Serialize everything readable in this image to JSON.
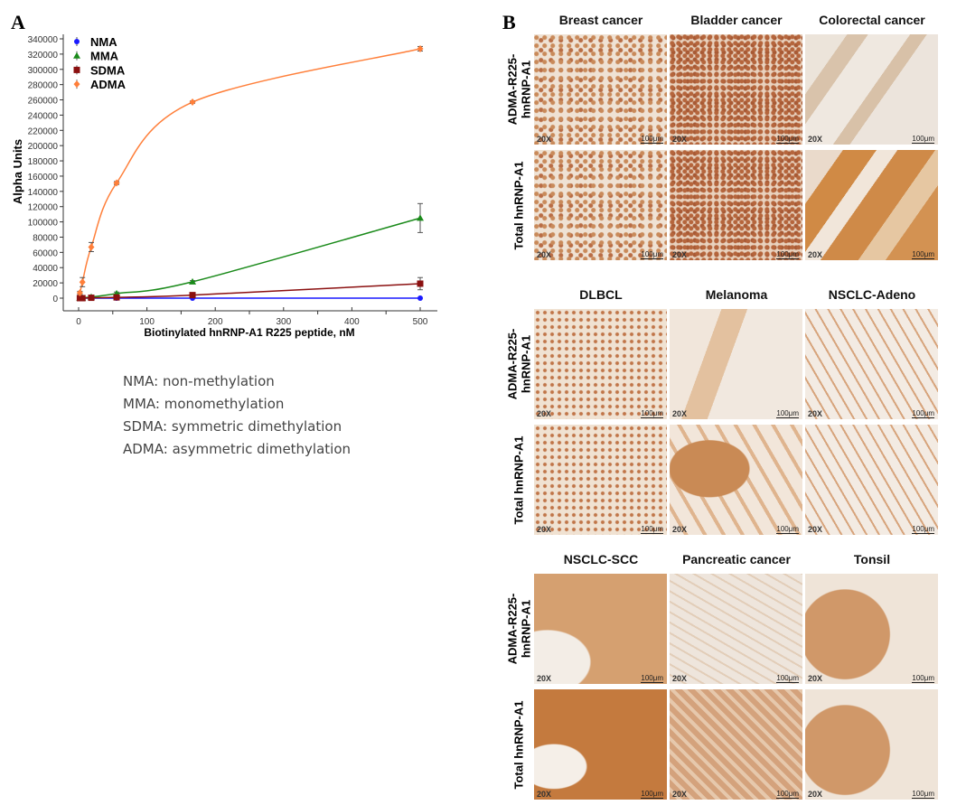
{
  "panel_a": {
    "letter": "A"
  },
  "panel_b": {
    "letter": "B"
  },
  "chart_data": {
    "type": "line",
    "title": "",
    "xlabel": "Biotinylated  hnRNP-A1  R225 peptide,  nM",
    "ylabel": "Alpha  Units",
    "xlim": [
      -10,
      515
    ],
    "ylim": [
      -15000,
      340000
    ],
    "xticks": [
      0,
      100,
      200,
      300,
      400,
      500
    ],
    "yticks": [
      0,
      20000,
      40000,
      60000,
      80000,
      100000,
      120000,
      140000,
      160000,
      180000,
      200000,
      220000,
      240000,
      260000,
      280000,
      300000,
      320000,
      340000
    ],
    "legend_position": "top-left",
    "x": [
      1.85,
      5.6,
      18.5,
      55.6,
      166.7,
      500
    ],
    "series": [
      {
        "name": "NMA",
        "color": "#1a1aff",
        "marker": "circle",
        "values": [
          0,
          0,
          0,
          0,
          0,
          0
        ],
        "errors": [
          0,
          0,
          0,
          0,
          0,
          0
        ]
      },
      {
        "name": "MMA",
        "color": "#1a8a1a",
        "marker": "triangle",
        "values": [
          0,
          500,
          1500,
          6000,
          21500,
          105000
        ],
        "errors": [
          0,
          0,
          0,
          2000,
          1500,
          19000
        ]
      },
      {
        "name": "SDMA",
        "color": "#8b1010",
        "marker": "square",
        "values": [
          0,
          0,
          500,
          1000,
          4000,
          19000
        ],
        "errors": [
          0,
          0,
          0,
          0,
          1000,
          8000
        ]
      },
      {
        "name": "ADMA",
        "color": "#ff7f3a",
        "marker": "diamond",
        "values": [
          7000,
          21000,
          67000,
          151000,
          257000,
          327000
        ],
        "errors": [
          2000,
          6000,
          6000,
          2000,
          1500,
          3000
        ]
      }
    ]
  },
  "abbreviations": [
    "NMA: non-methylation",
    "MMA: monomethylation",
    "SDMA: symmetric dimethylation",
    "ADMA: asymmetric dimethylation"
  ],
  "row_labels": {
    "adma": "ADMA-R225-\nhnRNP-A1",
    "total": "Total hnRNP-A1"
  },
  "image_labels": {
    "mag": "20X",
    "scale": "100μm"
  },
  "groups": [
    {
      "titles": [
        "Breast cancer",
        "Bladder cancer",
        "Colorectal cancer"
      ]
    },
    {
      "titles": [
        "DLBCL",
        "Melanoma",
        "NSCLC-Adeno"
      ]
    },
    {
      "titles": [
        "NSCLC-SCC",
        "Pancreatic cancer",
        "Tonsil"
      ]
    }
  ]
}
